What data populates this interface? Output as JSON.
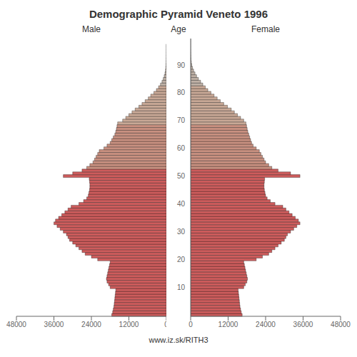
{
  "chart_data": {
    "type": "bar",
    "orientation": "horizontal",
    "title": "Demographic Pyramid Veneto 1996",
    "ylabel": "Age",
    "annotations": [
      "www.iz.sk/RITH3"
    ],
    "grid": false,
    "categories": [
      null,
      null,
      null,
      null,
      null,
      null,
      null,
      null,
      null,
      null,
      10,
      null,
      null,
      null,
      null,
      null,
      null,
      null,
      null,
      null,
      20,
      null,
      null,
      null,
      null,
      null,
      null,
      null,
      null,
      null,
      30,
      null,
      null,
      null,
      null,
      null,
      null,
      null,
      null,
      null,
      40,
      null,
      null,
      null,
      null,
      null,
      null,
      null,
      null,
      null,
      50,
      null,
      null,
      null,
      null,
      null,
      null,
      null,
      null,
      null,
      60,
      null,
      null,
      null,
      null,
      null,
      null,
      null,
      null,
      null,
      70,
      null,
      null,
      null,
      null,
      null,
      null,
      null,
      null,
      null,
      80,
      null,
      null,
      null,
      null,
      null,
      null,
      null,
      null,
      null,
      90,
      null,
      null,
      null,
      null,
      null,
      null,
      null,
      null,
      null
    ],
    "xlim": [
      0,
      48000
    ],
    "xticks": [
      0,
      12000,
      24000,
      36000,
      48000
    ],
    "colors": [
      "#CD5C5C",
      "#CD5C5C",
      "#CD5C5C",
      "#CD5C5C",
      "#CD5C5C",
      "#CD5C5C",
      "#CD5C5C",
      "#CD5C5C",
      "#CD5C5C",
      "#CD5C5C",
      "#CD5C5C",
      "#CD5C5C",
      "#CD5C5C",
      "#CD5C5C",
      "#CD5C5C",
      "#CD5C5C",
      "#CD5C5C",
      "#CD5C5C",
      "#CD5C5C",
      "#CD5C5C",
      "#CD5C5C",
      "#CD5C5C",
      "#CD5C5C",
      "#CD5C5C",
      "#CD5C5C",
      "#CD5C5C",
      "#CD5C5C",
      "#CD5C5C",
      "#CD5C5C",
      "#CD5C5C",
      "#CD5C5C",
      "#CD5C5C",
      "#CD5C5C",
      "#CD5C5C",
      "#CD5C5C",
      "#CD5C5C",
      "#CD5C5C",
      "#CD5C5C",
      "#CD5C5C",
      "#CD5C5C",
      "#CD5C5C",
      "#CD5C5C",
      "#CD5C5C",
      "#CD5C5C",
      "#CD5C5C",
      "#CD5C5C",
      "#CD5C5C",
      "#CD5C5C",
      "#CD5C5C",
      "#CD5C5C",
      "#CD5C5C",
      "#CD5C5C",
      "#CD5C5C",
      "#C89080",
      "#C89080",
      "#C89080",
      "#C89080",
      "#C89080",
      "#C89080",
      "#C89080",
      "#C89080",
      "#C89080",
      "#C89080",
      "#C89080",
      "#C89080",
      "#C89080",
      "#C89080",
      "#C89080",
      "#C89080",
      "#C8A896",
      "#C8A896",
      "#C8A896",
      "#C8A896",
      "#C8A896",
      "#C8A896",
      "#C8A896",
      "#C8A896",
      "#C8A896",
      "#C8A896",
      "#C8A896",
      "#C8A896",
      "#C8A896",
      "#C8A896",
      "#BEB0A5",
      "#BEB0A5",
      "#BEB0A5",
      "#BEB0A5",
      "#BEB0A5",
      "#BEB0A5",
      "#BEB0A5",
      "#BEB0A5",
      "#BEB0A5",
      "#BEB0A5",
      "#BEB0A5",
      "#BEB0A5",
      "#BEB0A5",
      "#BEB0A5",
      "#BEB0A5",
      "#BEB0A5",
      "#BEB0A5"
    ],
    "series": [
      {
        "name": "Male",
        "values": [
          17500,
          17200,
          17000,
          16800,
          16700,
          16600,
          16500,
          16400,
          16300,
          16200,
          18000,
          18500,
          19000,
          19200,
          19000,
          18800,
          18600,
          18400,
          18200,
          18000,
          22000,
          24000,
          26000,
          27000,
          28000,
          29000,
          30000,
          31000,
          31500,
          32000,
          33000,
          34000,
          35000,
          36000,
          35500,
          34500,
          33500,
          32500,
          31500,
          30500,
          28000,
          26500,
          25500,
          25000,
          24800,
          24600,
          24500,
          24500,
          24600,
          24700,
          33000,
          30000,
          27000,
          25500,
          24500,
          23500,
          23000,
          22500,
          22000,
          21500,
          20000,
          19000,
          18000,
          17500,
          17000,
          16500,
          16200,
          16000,
          15800,
          15600,
          14000,
          13000,
          12000,
          11000,
          10000,
          8800,
          7800,
          6800,
          5800,
          5000,
          4000,
          3200,
          2500,
          1900,
          1400,
          1000,
          700,
          450,
          280,
          160,
          85,
          45,
          24,
          12,
          6,
          3,
          1,
          1,
          0,
          0
        ]
      },
      {
        "name": "Female",
        "values": [
          16500,
          16200,
          16000,
          15800,
          15700,
          15600,
          15500,
          15400,
          15300,
          15200,
          17000,
          17500,
          18000,
          18200,
          18000,
          17800,
          17600,
          17400,
          17200,
          17000,
          21000,
          23000,
          25000,
          26000,
          27000,
          28000,
          29000,
          30000,
          30500,
          31000,
          32000,
          33000,
          34000,
          35000,
          34500,
          33500,
          32500,
          31500,
          30500,
          29500,
          27000,
          25500,
          24500,
          24000,
          23800,
          23600,
          23500,
          23500,
          23600,
          23700,
          35000,
          32000,
          28000,
          26000,
          25000,
          24000,
          23500,
          23000,
          22500,
          22000,
          21000,
          20000,
          19500,
          19200,
          18900,
          18600,
          18300,
          18100,
          17900,
          17700,
          17000,
          16000,
          15000,
          14000,
          13000,
          11800,
          10600,
          9500,
          8500,
          7500,
          6500,
          5500,
          4700,
          3900,
          3200,
          2500,
          1900,
          1400,
          950,
          600,
          360,
          210,
          115,
          60,
          30,
          14,
          7,
          3,
          1,
          1
        ]
      }
    ]
  }
}
